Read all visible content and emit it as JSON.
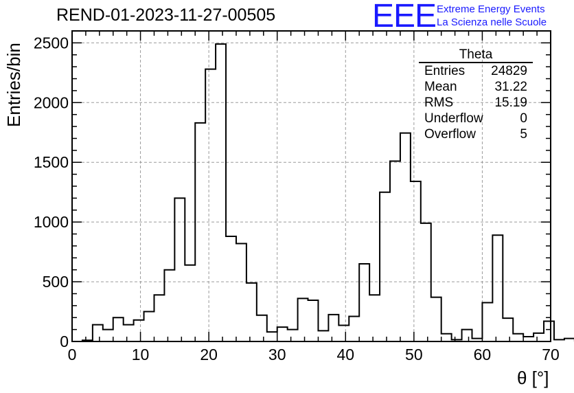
{
  "header": {
    "title": "REND-01-2023-11-27-00505",
    "logo_text": "EEE",
    "logo_line1": "Extreme Energy Events",
    "logo_line2": "La Scienza nelle Scuole"
  },
  "stats_box": {
    "name": "Theta",
    "rows": [
      {
        "label": "Entries",
        "value": "24829"
      },
      {
        "label": "Mean",
        "value": "31.22"
      },
      {
        "label": "RMS",
        "value": "15.19"
      },
      {
        "label": "Underflow",
        "value": "0"
      },
      {
        "label": "Overflow",
        "value": "5"
      }
    ]
  },
  "chart_data": {
    "type": "bar",
    "style": "step-histogram",
    "xlabel": "θ [°]",
    "ylabel": "Entries/bin",
    "xlim": [
      0,
      70
    ],
    "ylim": [
      0,
      2600
    ],
    "grid": true,
    "bin_width": 1.5,
    "bin_edges_start": 1.5,
    "values": [
      10,
      140,
      100,
      200,
      140,
      180,
      250,
      390,
      600,
      1200,
      640,
      1830,
      2280,
      2490,
      880,
      820,
      490,
      220,
      80,
      120,
      100,
      360,
      345,
      90,
      225,
      135,
      210,
      650,
      390,
      1250,
      1510,
      1745,
      1340,
      990,
      370,
      65,
      15,
      100,
      25,
      325,
      890,
      195,
      65,
      40,
      70,
      170,
      15,
      25
    ],
    "xticks": [
      0,
      10,
      20,
      30,
      40,
      50,
      60,
      70
    ],
    "yticks": [
      0,
      500,
      1000,
      1500,
      2000,
      2500
    ],
    "line_color": "#000000",
    "grid_color": "#9a9a9a"
  }
}
